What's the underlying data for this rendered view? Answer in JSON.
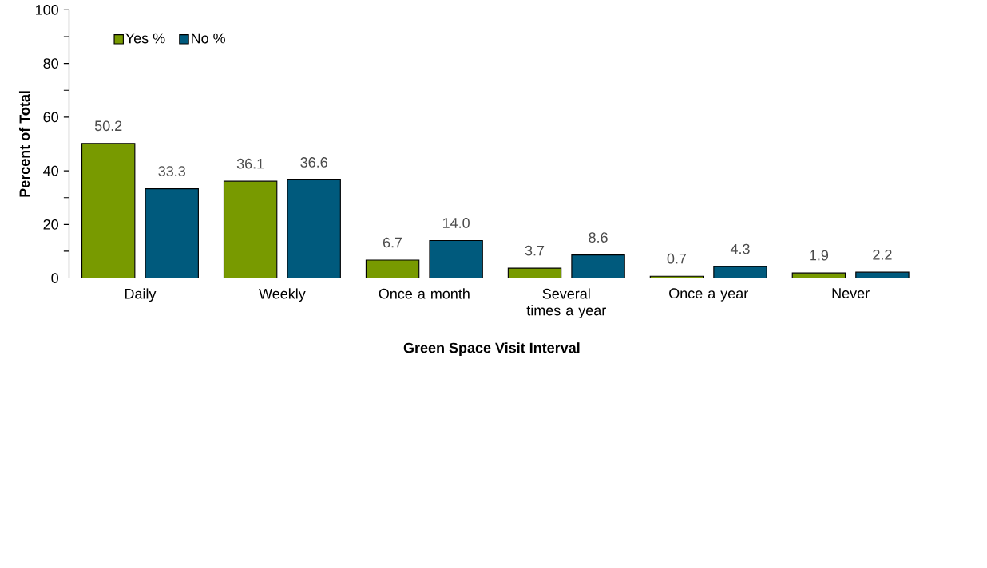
{
  "chart_data": {
    "type": "bar",
    "xlabel": "Green Space Visit Interval",
    "ylabel": "Percent of Total",
    "categories": [
      "Daily",
      "Weekly",
      "Once a month",
      "Several times a year",
      "Once a year",
      "Never"
    ],
    "series": [
      {
        "name": "Yes %",
        "color": "#789a00",
        "values": [
          50.2,
          36.1,
          6.7,
          3.7,
          0.7,
          1.9
        ],
        "value_labels": [
          "50.2",
          "36.1",
          "6.7",
          "3.7",
          "0.7",
          "1.9"
        ]
      },
      {
        "name": "No %",
        "color": "#005a7d",
        "values": [
          33.3,
          36.6,
          14.0,
          8.6,
          4.3,
          2.2
        ],
        "value_labels": [
          "33.3",
          "36.6",
          "14.0",
          "8.6",
          "4.3",
          "2.2"
        ]
      }
    ],
    "ylim": [
      0,
      100
    ],
    "yticks": [
      0,
      {
        "value": 10,
        "label": null
      },
      20,
      {
        "value": 30,
        "label": null
      },
      40,
      {
        "value": 50,
        "label": null
      },
      60,
      {
        "value": 70,
        "label": null
      },
      80,
      {
        "value": 90,
        "label": null
      },
      100
    ],
    "grid": false,
    "legend": "top left"
  }
}
